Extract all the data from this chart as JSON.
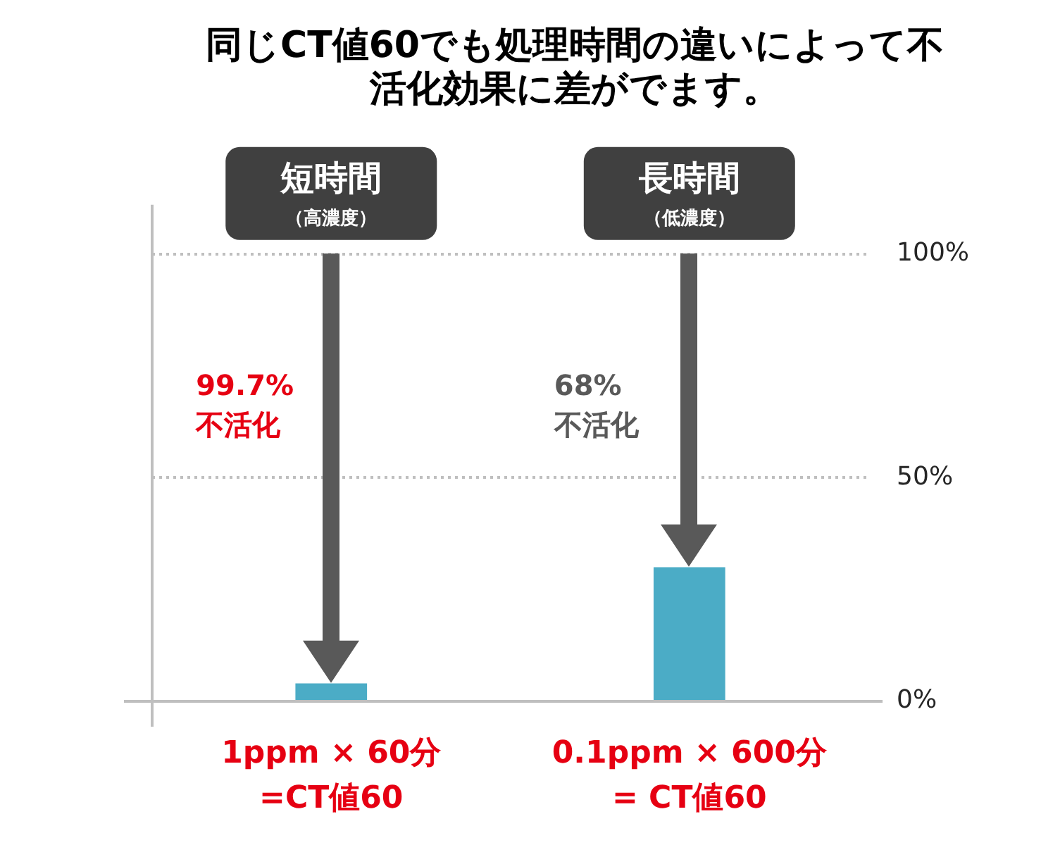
{
  "chart_data": {
    "type": "bar",
    "title": "同じCT値60でも処理時間の違いによって不活化効果に差がでます。",
    "categories": [
      "短時間（高濃度）",
      "長時間（低濃度）"
    ],
    "values": [
      4,
      30
    ],
    "color": "#4bacc6",
    "ylim": [
      0,
      100
    ],
    "yticks": [
      {
        "value": 0,
        "label": "0%"
      },
      {
        "value": 50,
        "label": "50%"
      },
      {
        "value": 100,
        "label": "100%"
      }
    ],
    "grid": "y",
    "annotations": [
      "99.7%不活化",
      "68%不活化",
      "1ppm × 60分=CT値60",
      "0.1ppm × 600分= CT値60"
    ]
  }
}
